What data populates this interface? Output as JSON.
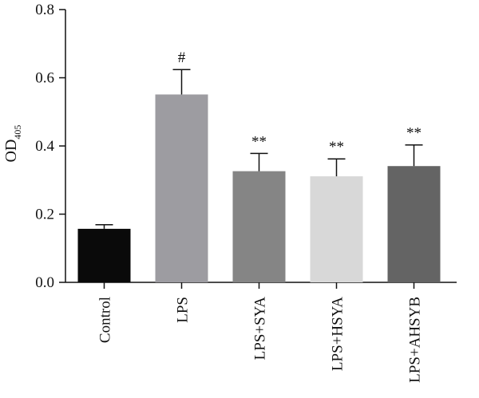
{
  "chart_data": {
    "type": "bar",
    "categories": [
      "Control",
      "LPS",
      "LPS+SYA",
      "LPS+HSYA",
      "LPS+AHSYB"
    ],
    "values": [
      0.157,
      0.551,
      0.326,
      0.311,
      0.341
    ],
    "errors": [
      0.012,
      0.073,
      0.052,
      0.051,
      0.062
    ],
    "significance": [
      "",
      "#",
      "**",
      "**",
      "**"
    ],
    "bar_colors": [
      "#0a0a0a",
      "#9d9ca1",
      "#858585",
      "#d8d8d8",
      "#646464"
    ],
    "title": "",
    "ylabel": "OD",
    "ylabel_subscript": "405",
    "xlabel": "",
    "ylim": [
      0,
      0.8
    ],
    "yticks": [
      "0.0",
      "0.2",
      "0.4",
      "0.6",
      "0.8"
    ],
    "grid": false,
    "legend": "none"
  }
}
